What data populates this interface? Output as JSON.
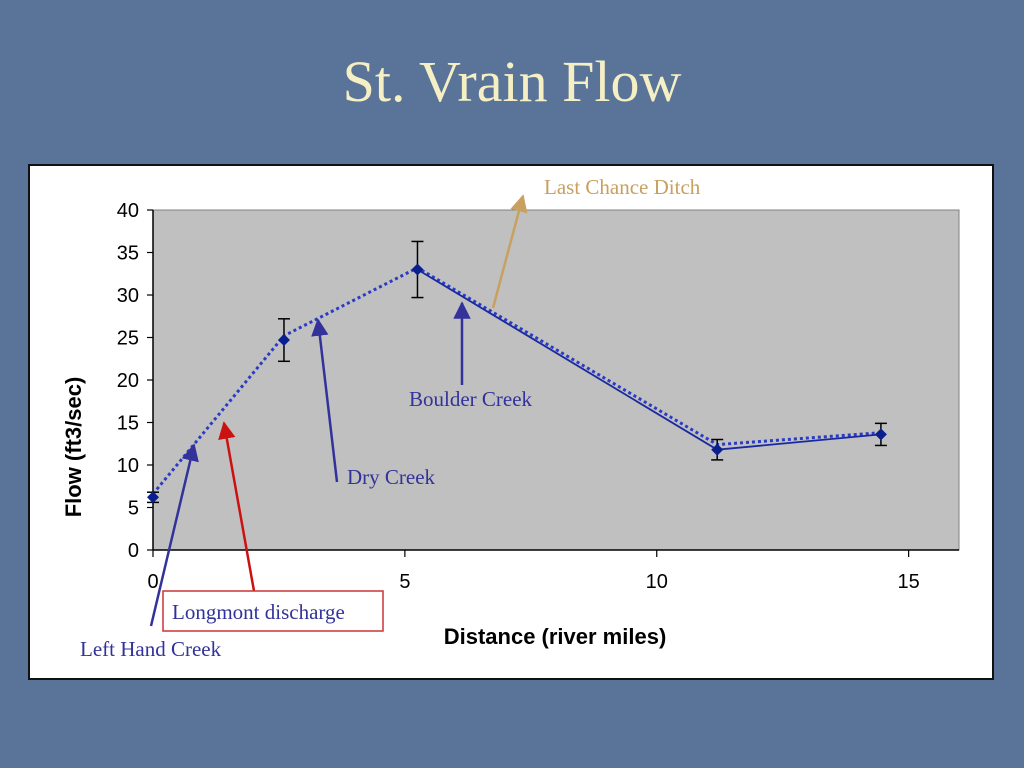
{
  "slide": {
    "title": "St. Vrain Flow"
  },
  "colors": {
    "background": "#5a7399",
    "title": "#f5efc4",
    "plot_area": "#c0c0c0",
    "series_marker": "#0a1f8f",
    "series_line": "#1a2a9e",
    "trend_line": "#2b3bc4",
    "annotation_blue": "#32329a",
    "annotation_red": "#cc1111",
    "annotation_tan": "#c8a060"
  },
  "chart_data": {
    "type": "scatter",
    "title": "",
    "xlabel": "Distance (river miles)",
    "ylabel": "Flow (ft3/sec)",
    "xlim": [
      0,
      16
    ],
    "ylim": [
      0,
      40
    ],
    "x_ticks": [
      0,
      5,
      10,
      15
    ],
    "y_ticks": [
      0,
      5,
      10,
      15,
      20,
      25,
      30,
      35,
      40
    ],
    "grid": false,
    "legend": "none",
    "series": [
      {
        "x": [
          0,
          2.6,
          5.25,
          11.2,
          14.45
        ],
        "y": [
          6.2,
          24.7,
          33,
          11.8,
          13.6
        ],
        "error": [
          0.6,
          2.5,
          3.3,
          1.2,
          1.3
        ]
      }
    ],
    "trend_line": {
      "style": "dotted",
      "x": [
        0,
        2.6,
        5.25,
        11.2,
        14.45
      ],
      "y": [
        6.6,
        25.2,
        33.2,
        12.4,
        13.8
      ]
    },
    "annotations": [
      {
        "text": "Last Chance Ditch",
        "color": "tan"
      },
      {
        "text": "Boulder Creek",
        "color": "blue"
      },
      {
        "text": "Dry Creek",
        "color": "blue"
      },
      {
        "text": "Longmont discharge",
        "color": "blue",
        "boxed": true
      },
      {
        "text": "Left Hand Creek",
        "color": "blue"
      }
    ]
  }
}
